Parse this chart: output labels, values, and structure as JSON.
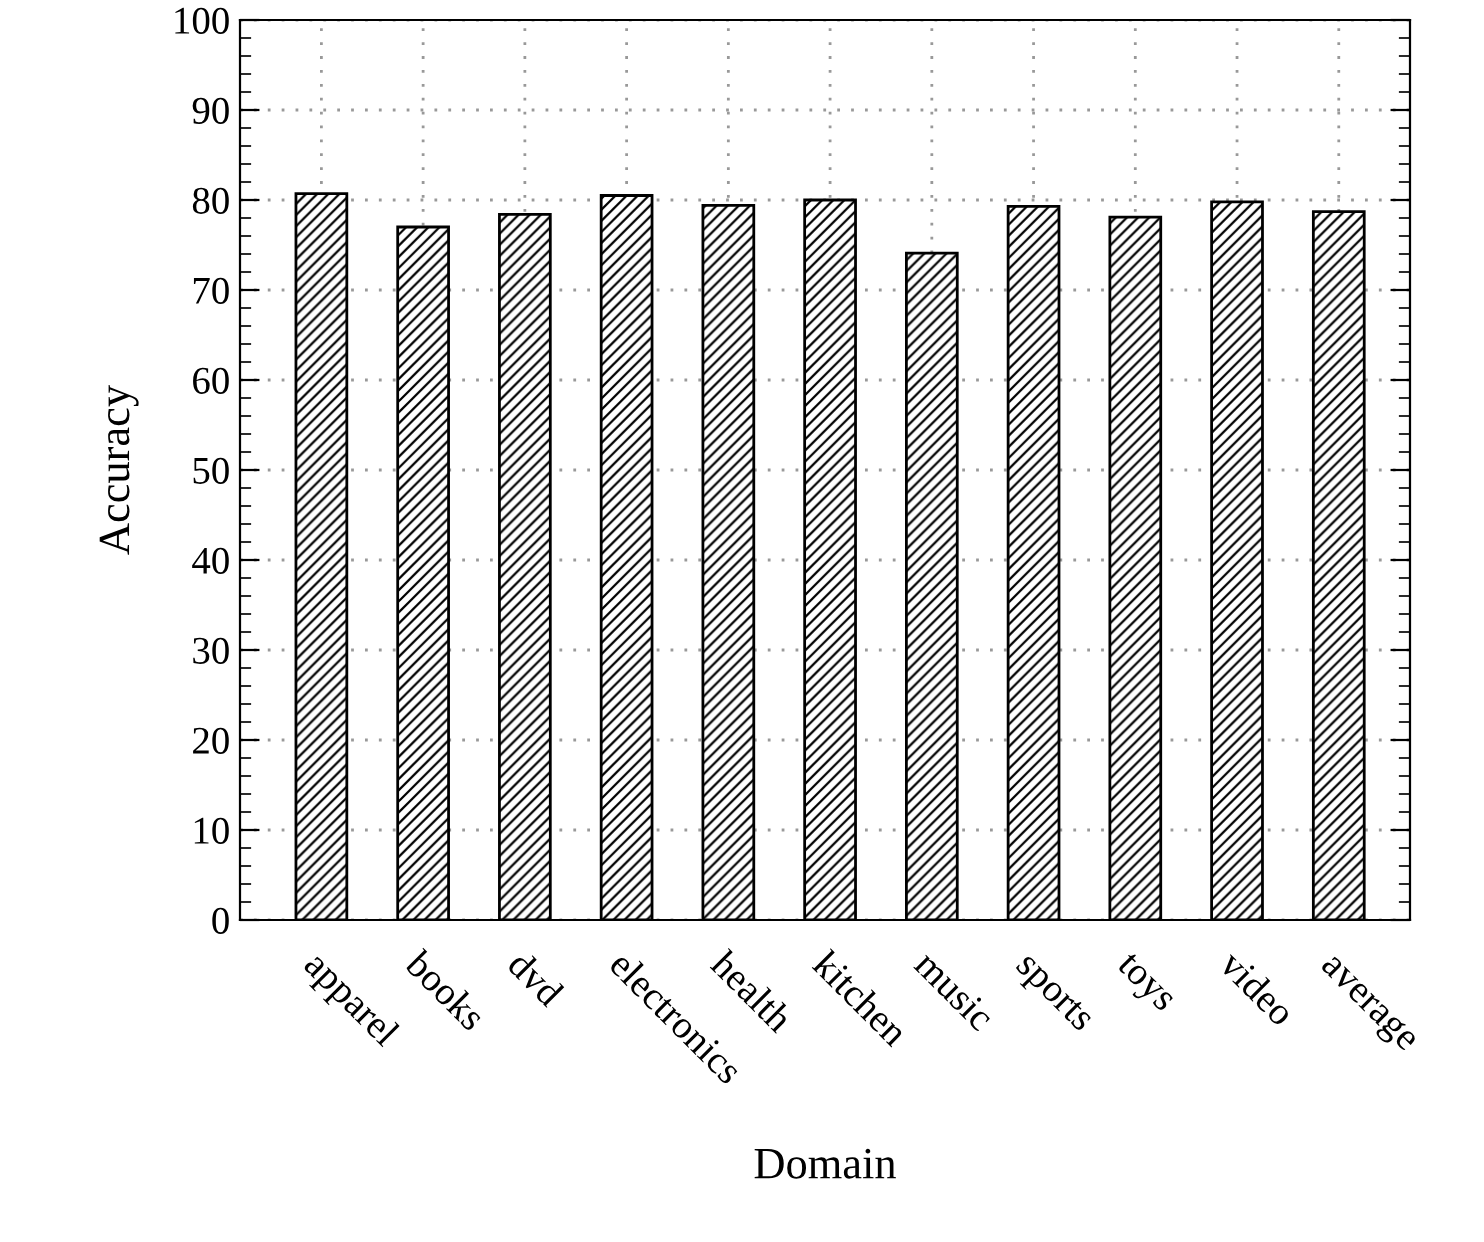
{
  "chart_data": {
    "type": "bar",
    "xlabel": "Domain",
    "ylabel": "Accuracy",
    "categories": [
      "apparel",
      "books",
      "dvd",
      "electronics",
      "health",
      "kitchen",
      "music",
      "sports",
      "toys",
      "video",
      "average"
    ],
    "values": [
      80.7,
      77.0,
      78.4,
      80.5,
      79.4,
      80.0,
      74.1,
      79.3,
      78.1,
      79.8,
      78.7
    ],
    "color": "#000000",
    "ylim": [
      0,
      100
    ],
    "yticks": [
      0,
      10,
      20,
      30,
      40,
      50,
      60,
      70,
      80,
      90,
      100
    ],
    "grid": true,
    "legend": false
  }
}
